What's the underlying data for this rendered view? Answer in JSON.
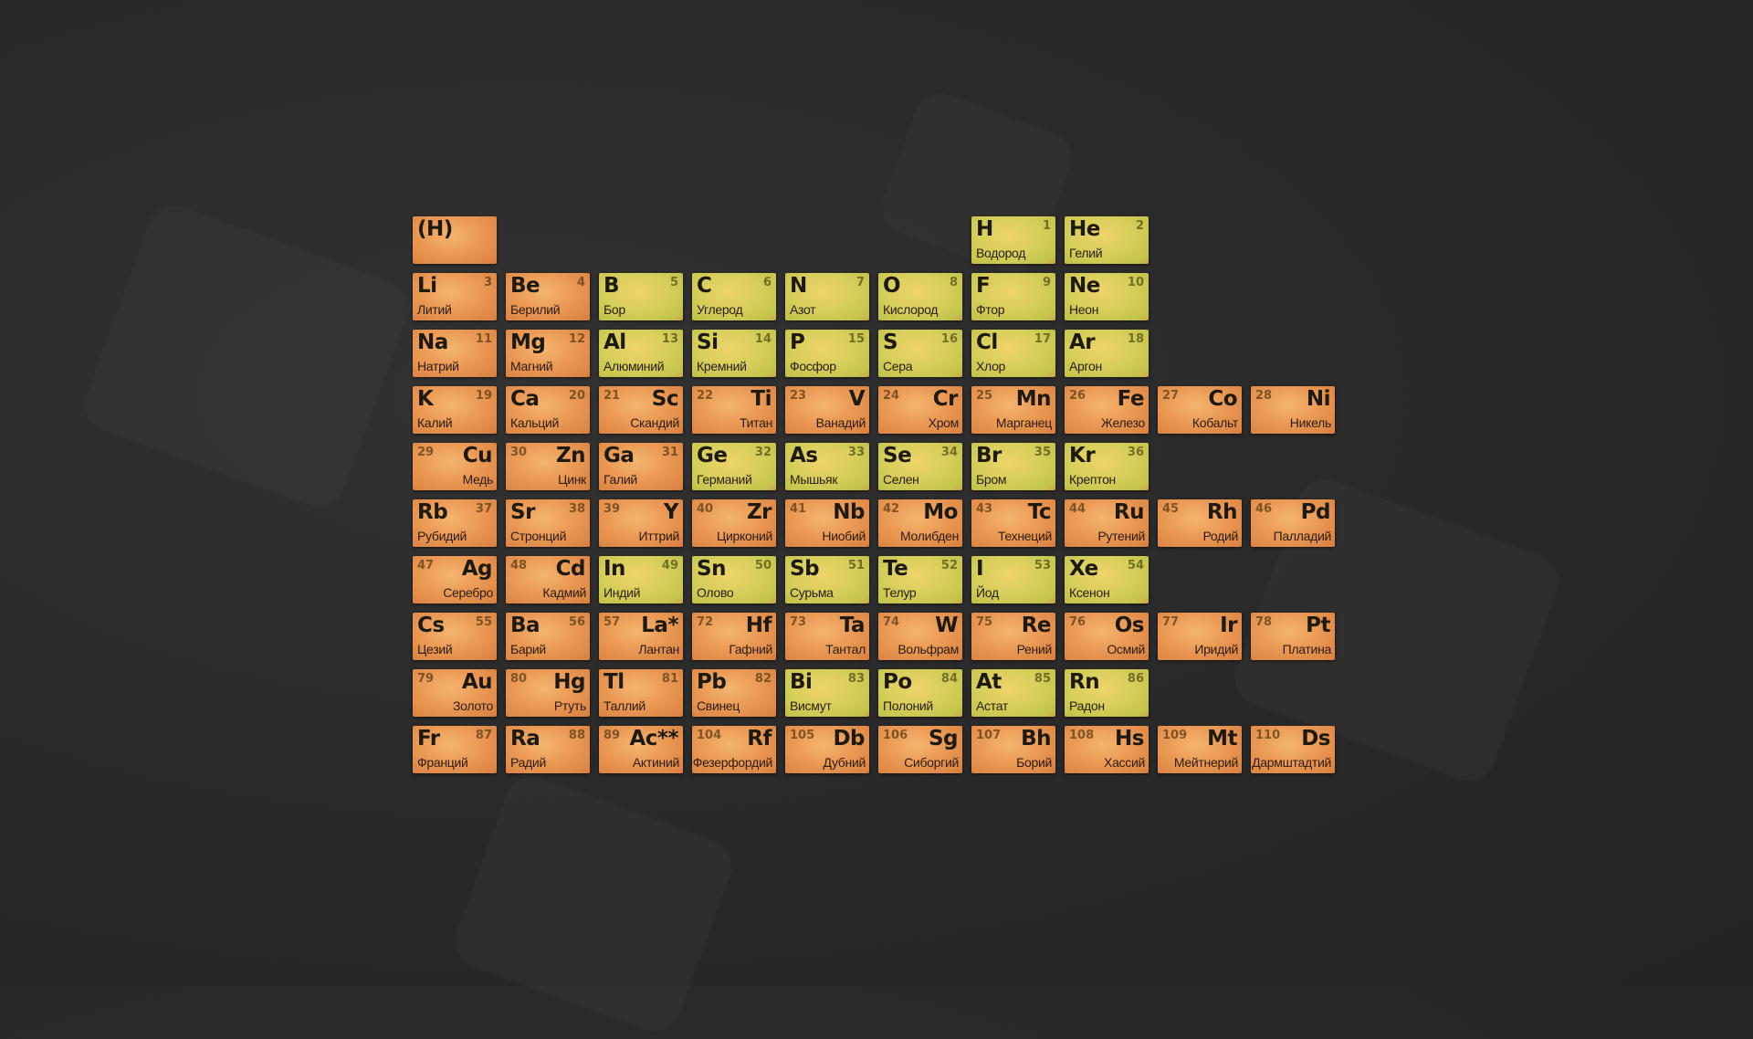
{
  "colors": {
    "orange": "#eb9a55",
    "green": "#d8cf5c",
    "background": "#2a2a2a"
  },
  "rows": [
    [
      {
        "sym": "(H)",
        "num": "",
        "name": "",
        "color": "orange"
      },
      null,
      null,
      null,
      null,
      null,
      {
        "sym": "H",
        "num": "1",
        "name": "Водород",
        "color": "green"
      },
      {
        "sym": "He",
        "num": "2",
        "name": "Гелий",
        "color": "green"
      },
      null,
      null
    ],
    [
      {
        "sym": "Li",
        "num": "3",
        "name": "Литий",
        "color": "orange"
      },
      {
        "sym": "Be",
        "num": "4",
        "name": "Берилий",
        "color": "orange"
      },
      {
        "sym": "B",
        "num": "5",
        "name": "Бор",
        "color": "green"
      },
      {
        "sym": "C",
        "num": "6",
        "name": "Углерод",
        "color": "green"
      },
      {
        "sym": "N",
        "num": "7",
        "name": "Азот",
        "color": "green"
      },
      {
        "sym": "O",
        "num": "8",
        "name": "Кислород",
        "color": "green"
      },
      {
        "sym": "F",
        "num": "9",
        "name": "Фтор",
        "color": "green"
      },
      {
        "sym": "Ne",
        "num": "10",
        "name": "Неон",
        "color": "green"
      },
      null,
      null
    ],
    [
      {
        "sym": "Na",
        "num": "11",
        "name": "Натрий",
        "color": "orange"
      },
      {
        "sym": "Mg",
        "num": "12",
        "name": "Магний",
        "color": "orange"
      },
      {
        "sym": "Al",
        "num": "13",
        "name": "Алюминий",
        "color": "green"
      },
      {
        "sym": "Si",
        "num": "14",
        "name": "Кремний",
        "color": "green"
      },
      {
        "sym": "P",
        "num": "15",
        "name": "Фосфор",
        "color": "green"
      },
      {
        "sym": "S",
        "num": "16",
        "name": "Сера",
        "color": "green"
      },
      {
        "sym": "Cl",
        "num": "17",
        "name": "Хлор",
        "color": "green"
      },
      {
        "sym": "Ar",
        "num": "18",
        "name": "Аргон",
        "color": "green"
      },
      null,
      null
    ],
    [
      {
        "sym": "K",
        "num": "19",
        "name": "Калий",
        "color": "orange"
      },
      {
        "sym": "Ca",
        "num": "20",
        "name": "Кальций",
        "color": "orange"
      },
      {
        "sym": "Sc",
        "num": "21",
        "name": "Скандий",
        "color": "orange"
      },
      {
        "sym": "Ti",
        "num": "22",
        "name": "Титан",
        "color": "orange"
      },
      {
        "sym": "V",
        "num": "23",
        "name": "Ванадий",
        "color": "orange"
      },
      {
        "sym": "Cr",
        "num": "24",
        "name": "Хром",
        "color": "orange"
      },
      {
        "sym": "Mn",
        "num": "25",
        "name": "Марганец",
        "color": "orange"
      },
      {
        "sym": "Fe",
        "num": "26",
        "name": "Железо",
        "color": "orange"
      },
      {
        "sym": "Co",
        "num": "27",
        "name": "Кобальт",
        "color": "orange"
      },
      {
        "sym": "Ni",
        "num": "28",
        "name": "Никель",
        "color": "orange"
      }
    ],
    [
      {
        "sym": "Cu",
        "num": "29",
        "name": "Медь",
        "color": "orange"
      },
      {
        "sym": "Zn",
        "num": "30",
        "name": "Цинк",
        "color": "orange"
      },
      {
        "sym": "Ga",
        "num": "31",
        "name": "Галий",
        "color": "orange"
      },
      {
        "sym": "Ge",
        "num": "32",
        "name": "Германий",
        "color": "green"
      },
      {
        "sym": "As",
        "num": "33",
        "name": "Мышьяк",
        "color": "green"
      },
      {
        "sym": "Se",
        "num": "34",
        "name": "Селен",
        "color": "green"
      },
      {
        "sym": "Br",
        "num": "35",
        "name": "Бром",
        "color": "green"
      },
      {
        "sym": "Kr",
        "num": "36",
        "name": "Крептон",
        "color": "green"
      },
      null,
      null
    ],
    [
      {
        "sym": "Rb",
        "num": "37",
        "name": "Рубидий",
        "color": "orange"
      },
      {
        "sym": "Sr",
        "num": "38",
        "name": "Стронций",
        "color": "orange"
      },
      {
        "sym": "Y",
        "num": "39",
        "name": "Иттрий",
        "color": "orange"
      },
      {
        "sym": "Zr",
        "num": "40",
        "name": "Цирконий",
        "color": "orange"
      },
      {
        "sym": "Nb",
        "num": "41",
        "name": "Ниобий",
        "color": "orange"
      },
      {
        "sym": "Mo",
        "num": "42",
        "name": "Молибден",
        "color": "orange"
      },
      {
        "sym": "Tc",
        "num": "43",
        "name": "Технеций",
        "color": "orange"
      },
      {
        "sym": "Ru",
        "num": "44",
        "name": "Рутений",
        "color": "orange"
      },
      {
        "sym": "Rh",
        "num": "45",
        "name": "Родий",
        "color": "orange"
      },
      {
        "sym": "Pd",
        "num": "46",
        "name": "Палладий",
        "color": "orange"
      }
    ],
    [
      {
        "sym": "Ag",
        "num": "47",
        "name": "Серебро",
        "color": "orange"
      },
      {
        "sym": "Cd",
        "num": "48",
        "name": "Кадмий",
        "color": "orange"
      },
      {
        "sym": "In",
        "num": "49",
        "name": "Индий",
        "color": "green"
      },
      {
        "sym": "Sn",
        "num": "50",
        "name": "Олово",
        "color": "green"
      },
      {
        "sym": "Sb",
        "num": "51",
        "name": "Сурьма",
        "color": "green"
      },
      {
        "sym": "Te",
        "num": "52",
        "name": "Телур",
        "color": "green"
      },
      {
        "sym": "I",
        "num": "53",
        "name": "Йод",
        "color": "green"
      },
      {
        "sym": "Xe",
        "num": "54",
        "name": "Ксенон",
        "color": "green"
      },
      null,
      null
    ],
    [
      {
        "sym": "Cs",
        "num": "55",
        "name": "Цезий",
        "color": "orange"
      },
      {
        "sym": "Ba",
        "num": "56",
        "name": "Барий",
        "color": "orange"
      },
      {
        "sym": "La*",
        "num": "57",
        "name": "Лантан",
        "color": "orange"
      },
      {
        "sym": "Hf",
        "num": "72",
        "name": "Гафний",
        "color": "orange"
      },
      {
        "sym": "Ta",
        "num": "73",
        "name": "Тантал",
        "color": "orange"
      },
      {
        "sym": "W",
        "num": "74",
        "name": "Вольфрам",
        "color": "orange"
      },
      {
        "sym": "Re",
        "num": "75",
        "name": "Рений",
        "color": "orange"
      },
      {
        "sym": "Os",
        "num": "76",
        "name": "Осмий",
        "color": "orange"
      },
      {
        "sym": "Ir",
        "num": "77",
        "name": "Иридий",
        "color": "orange"
      },
      {
        "sym": "Pt",
        "num": "78",
        "name": "Платина",
        "color": "orange"
      }
    ],
    [
      {
        "sym": "Au",
        "num": "79",
        "name": "Золото",
        "color": "orange"
      },
      {
        "sym": "Hg",
        "num": "80",
        "name": "Ртуть",
        "color": "orange"
      },
      {
        "sym": "Tl",
        "num": "81",
        "name": "Таллий",
        "color": "orange"
      },
      {
        "sym": "Pb",
        "num": "82",
        "name": "Свинец",
        "color": "orange"
      },
      {
        "sym": "Bi",
        "num": "83",
        "name": "Висмут",
        "color": "green"
      },
      {
        "sym": "Po",
        "num": "84",
        "name": "Полоний",
        "color": "green"
      },
      {
        "sym": "At",
        "num": "85",
        "name": "Астат",
        "color": "green"
      },
      {
        "sym": "Rn",
        "num": "86",
        "name": "Радон",
        "color": "green"
      },
      null,
      null
    ],
    [
      {
        "sym": "Fr",
        "num": "87",
        "name": "Франций",
        "color": "orange"
      },
      {
        "sym": "Ra",
        "num": "88",
        "name": "Радий",
        "color": "orange"
      },
      {
        "sym": "Ac**",
        "num": "89",
        "name": "Актиний",
        "color": "orange"
      },
      {
        "sym": "Rf",
        "num": "104",
        "name": "Фезерфордий",
        "color": "orange"
      },
      {
        "sym": "Db",
        "num": "105",
        "name": "Дубний",
        "color": "orange"
      },
      {
        "sym": "Sg",
        "num": "106",
        "name": "Сиборгий",
        "color": "orange"
      },
      {
        "sym": "Bh",
        "num": "107",
        "name": "Борий",
        "color": "orange"
      },
      {
        "sym": "Hs",
        "num": "108",
        "name": "Хассий",
        "color": "orange"
      },
      {
        "sym": "Mt",
        "num": "109",
        "name": "Мейтнерий",
        "color": "orange"
      },
      {
        "sym": "Ds",
        "num": "110",
        "name": "Дармштадтий",
        "color": "orange"
      }
    ]
  ]
}
